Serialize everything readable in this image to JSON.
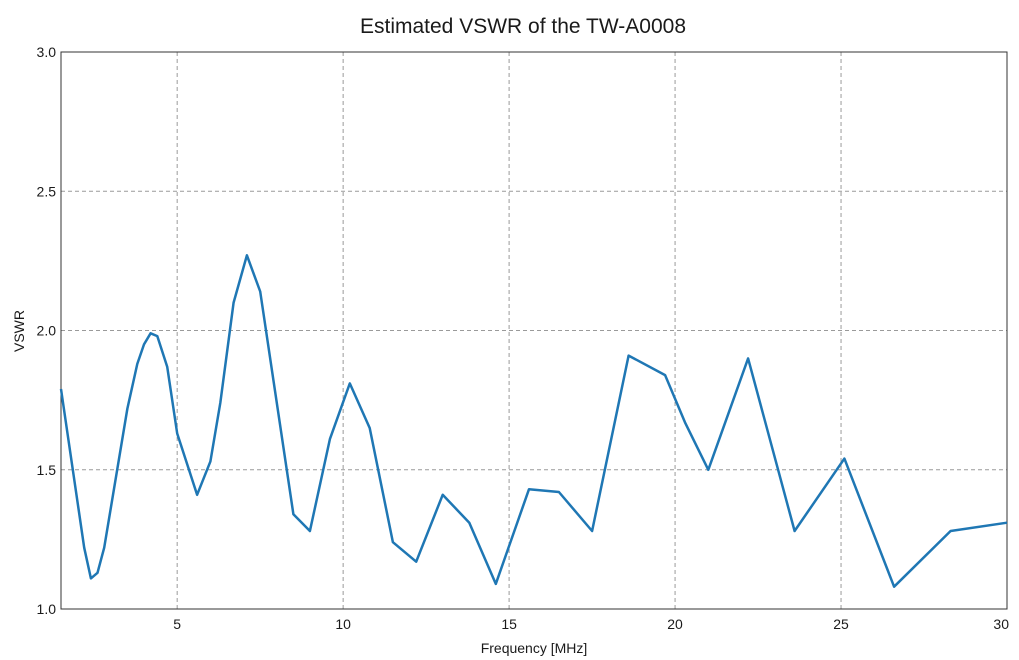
{
  "chart_data": {
    "type": "line",
    "title": "Estimated VSWR of the TW-A0008",
    "xlabel": "Frequency [MHz]",
    "ylabel": "VSWR",
    "xlim": [
      1.5,
      30
    ],
    "ylim": [
      1.0,
      3.0
    ],
    "xticks": [
      5,
      10,
      15,
      20,
      25,
      30
    ],
    "yticks": [
      1.0,
      1.5,
      2.0,
      2.5,
      3.0
    ],
    "x_tick_labels": [
      "5",
      "10",
      "15",
      "20",
      "25",
      "30"
    ],
    "y_tick_labels": [
      "1.0",
      "1.5",
      "2.0",
      "2.5",
      "3.0"
    ],
    "grid": true,
    "line_color": "#1f77b4",
    "series": [
      {
        "x": [
          1.5,
          2.2,
          2.4,
          2.6,
          2.8,
          3.5,
          3.8,
          4.0,
          4.2,
          4.4,
          4.7,
          5.0,
          5.6,
          6.0,
          6.3,
          6.7,
          7.1,
          7.5,
          8.5,
          9.0,
          9.6,
          10.2,
          10.8,
          11.5,
          12.2,
          13.0,
          13.8,
          14.6,
          15.6,
          16.5,
          17.5,
          18.6,
          19.7,
          20.3,
          21.0,
          22.2,
          23.6,
          25.1,
          26.6,
          28.3,
          30.0
        ],
        "y": [
          1.79,
          1.22,
          1.11,
          1.13,
          1.22,
          1.72,
          1.88,
          1.95,
          1.99,
          1.98,
          1.87,
          1.63,
          1.41,
          1.53,
          1.74,
          2.1,
          2.27,
          2.14,
          1.34,
          1.28,
          1.61,
          1.81,
          1.65,
          1.24,
          1.17,
          1.41,
          1.31,
          1.09,
          1.43,
          1.42,
          1.28,
          1.91,
          1.84,
          1.67,
          1.5,
          1.9,
          1.28,
          1.54,
          1.08,
          1.28,
          1.31
        ]
      }
    ]
  }
}
